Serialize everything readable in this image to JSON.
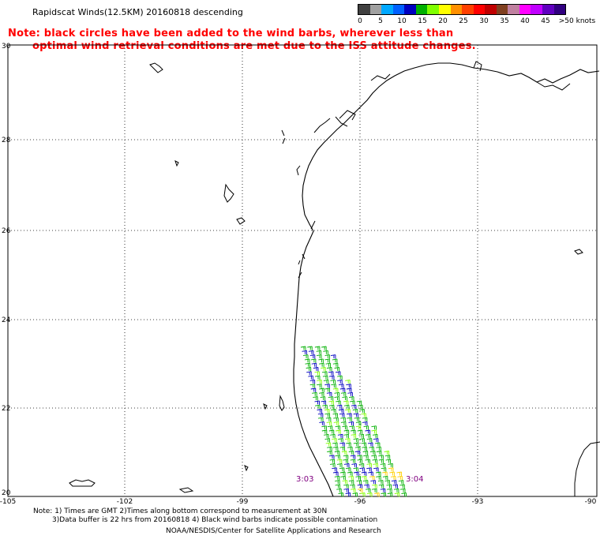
{
  "title": "Rapidscat Winds(12.5KM) 20160818 descending",
  "note": {
    "line1": "Note: black circles have been added to the wind barbs, wherever less than",
    "line2": "optimal wind retrieval conditions are met due to the ISS attitude changes."
  },
  "legend": {
    "colors": [
      "#404040",
      "#a0a0a0",
      "#00a8ff",
      "#0060ff",
      "#0000c0",
      "#00b000",
      "#80ff00",
      "#ffff00",
      "#ff9000",
      "#ff4000",
      "#ff0000",
      "#c00000",
      "#804020",
      "#c080a0",
      "#ff00ff",
      "#c000ff",
      "#6000c0",
      "#300080"
    ],
    "labels": [
      "0",
      "5",
      "10",
      "15",
      "20",
      "25",
      "30",
      "35",
      "40",
      "45",
      ">50 knots"
    ]
  },
  "map": {
    "lon_labels": [
      "-105",
      "-102",
      "-99",
      "-96",
      "-93",
      "-90"
    ],
    "lat_labels": [
      "30",
      "28",
      "26",
      "24",
      "22",
      "20"
    ],
    "time_labels": [
      "3:03",
      "3:04"
    ]
  },
  "footer": {
    "line1": "Note: 1) Times are GMT 2)Times along bottom correspond to measurement at 30N",
    "line2": "3)Data buffer is 22 hrs from 20160818 4) Black wind barbs indicate possible contamination",
    "line3": "NOAA/NESDIS/Center for Satellite Applications and Research"
  }
}
